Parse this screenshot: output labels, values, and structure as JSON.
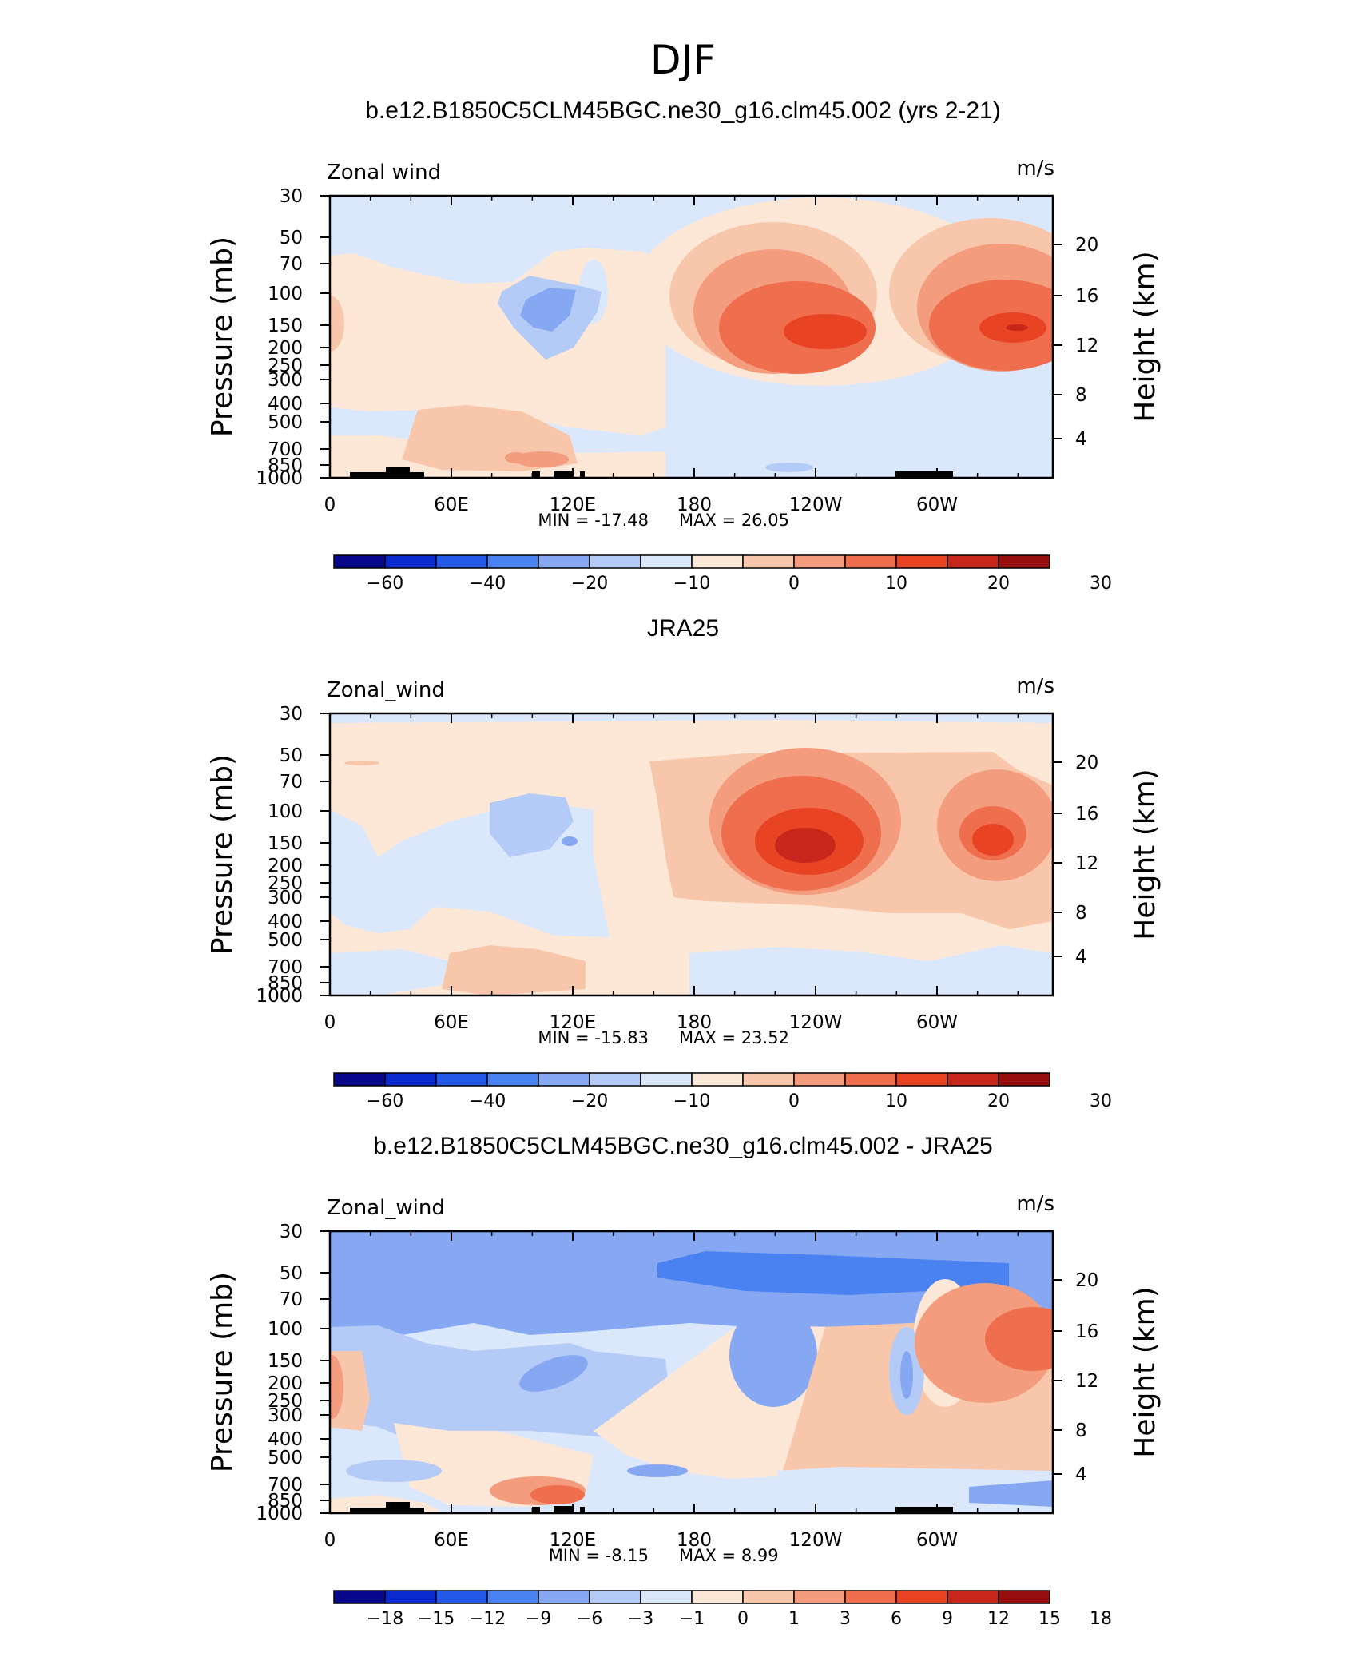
{
  "main_title": "DJF",
  "chart_data": [
    {
      "type": "contour",
      "title": "b.e12.B1850C5CLM45BGC.ne30_g16.clm45.002 (yrs 2-21)",
      "variable_label": "Zonal wind",
      "units_label": "m/s",
      "ylabel_left": "Pressure (mb)",
      "ylabel_right": "Height (km)",
      "x_ticklabels": [
        "0",
        "60E",
        "120E",
        "180",
        "120W",
        "60W"
      ],
      "pressure_ticklabels": [
        "30",
        "50",
        "70",
        "100",
        "150",
        "200",
        "250",
        "300",
        "400",
        "500",
        "700",
        "850",
        "1000"
      ],
      "pressure_levels": [
        30,
        50,
        70,
        100,
        150,
        200,
        250,
        300,
        400,
        500,
        700,
        850,
        1000
      ],
      "height_ticklabels": [
        "20",
        "16",
        "12",
        "8",
        "4"
      ],
      "heights_km": [
        20,
        16,
        12,
        8,
        4
      ],
      "min_label": "MIN = -17.48",
      "max_label": "MAX = 26.05",
      "min": -17.48,
      "max": 26.05,
      "colorbar_labels": [
        "−60",
        "−40",
        "−20",
        "−10",
        "0",
        "10",
        "20",
        "30"
      ],
      "colorbar_label_boundaries": [
        1,
        3,
        5,
        7,
        9,
        11,
        13,
        15
      ]
    },
    {
      "type": "contour",
      "title": "JRA25",
      "variable_label": "Zonal_wind",
      "units_label": "m/s",
      "ylabel_left": "Pressure (mb)",
      "ylabel_right": "Height (km)",
      "x_ticklabels": [
        "0",
        "60E",
        "120E",
        "180",
        "120W",
        "60W"
      ],
      "pressure_ticklabels": [
        "30",
        "50",
        "70",
        "100",
        "150",
        "200",
        "250",
        "300",
        "400",
        "500",
        "700",
        "850",
        "1000"
      ],
      "pressure_levels": [
        30,
        50,
        70,
        100,
        150,
        200,
        250,
        300,
        400,
        500,
        700,
        850,
        1000
      ],
      "height_ticklabels": [
        "20",
        "16",
        "12",
        "8",
        "4"
      ],
      "heights_km": [
        20,
        16,
        12,
        8,
        4
      ],
      "min_label": "MIN = -15.83",
      "max_label": "MAX = 23.52",
      "min": -15.83,
      "max": 23.52,
      "colorbar_labels": [
        "−60",
        "−40",
        "−20",
        "−10",
        "0",
        "10",
        "20",
        "30"
      ],
      "colorbar_label_boundaries": [
        1,
        3,
        5,
        7,
        9,
        11,
        13,
        15
      ]
    },
    {
      "type": "contour",
      "title": "b.e12.B1850C5CLM45BGC.ne30_g16.clm45.002 - JRA25",
      "variable_label": "Zonal_wind",
      "units_label": "m/s",
      "ylabel_left": "Pressure (mb)",
      "ylabel_right": "Height (km)",
      "x_ticklabels": [
        "0",
        "60E",
        "120E",
        "180",
        "120W",
        "60W"
      ],
      "pressure_ticklabels": [
        "30",
        "50",
        "70",
        "100",
        "150",
        "200",
        "250",
        "300",
        "400",
        "500",
        "700",
        "850",
        "1000"
      ],
      "pressure_levels": [
        30,
        50,
        70,
        100,
        150,
        200,
        250,
        300,
        400,
        500,
        700,
        850,
        1000
      ],
      "height_ticklabels": [
        "20",
        "16",
        "12",
        "8",
        "4"
      ],
      "heights_km": [
        20,
        16,
        12,
        8,
        4
      ],
      "min_label": "MIN = -8.15",
      "max_label": "MAX = 8.99",
      "min": -8.15,
      "max": 8.99,
      "colorbar_labels": [
        "−18",
        "−15",
        "−12",
        "−9",
        "−6",
        "−3",
        "−1",
        "0",
        "1",
        "3",
        "6",
        "9",
        "12",
        "15",
        "18"
      ],
      "colorbar_label_boundaries": [
        1,
        2,
        3,
        4,
        5,
        6,
        7,
        8,
        9,
        10,
        11,
        12,
        13,
        14,
        15
      ]
    }
  ],
  "colors": {
    "colorbar": [
      "#08088c",
      "#0b2bd0",
      "#2259e8",
      "#4b82f2",
      "#86a8f3",
      "#b5cbf7",
      "#dbe8fb",
      "#fde8d7",
      "#f8c6ab",
      "#f39c7e",
      "#ee6e4e",
      "#e84424",
      "#c8261a",
      "#980e0e"
    ],
    "background": "#dbe8fb"
  }
}
